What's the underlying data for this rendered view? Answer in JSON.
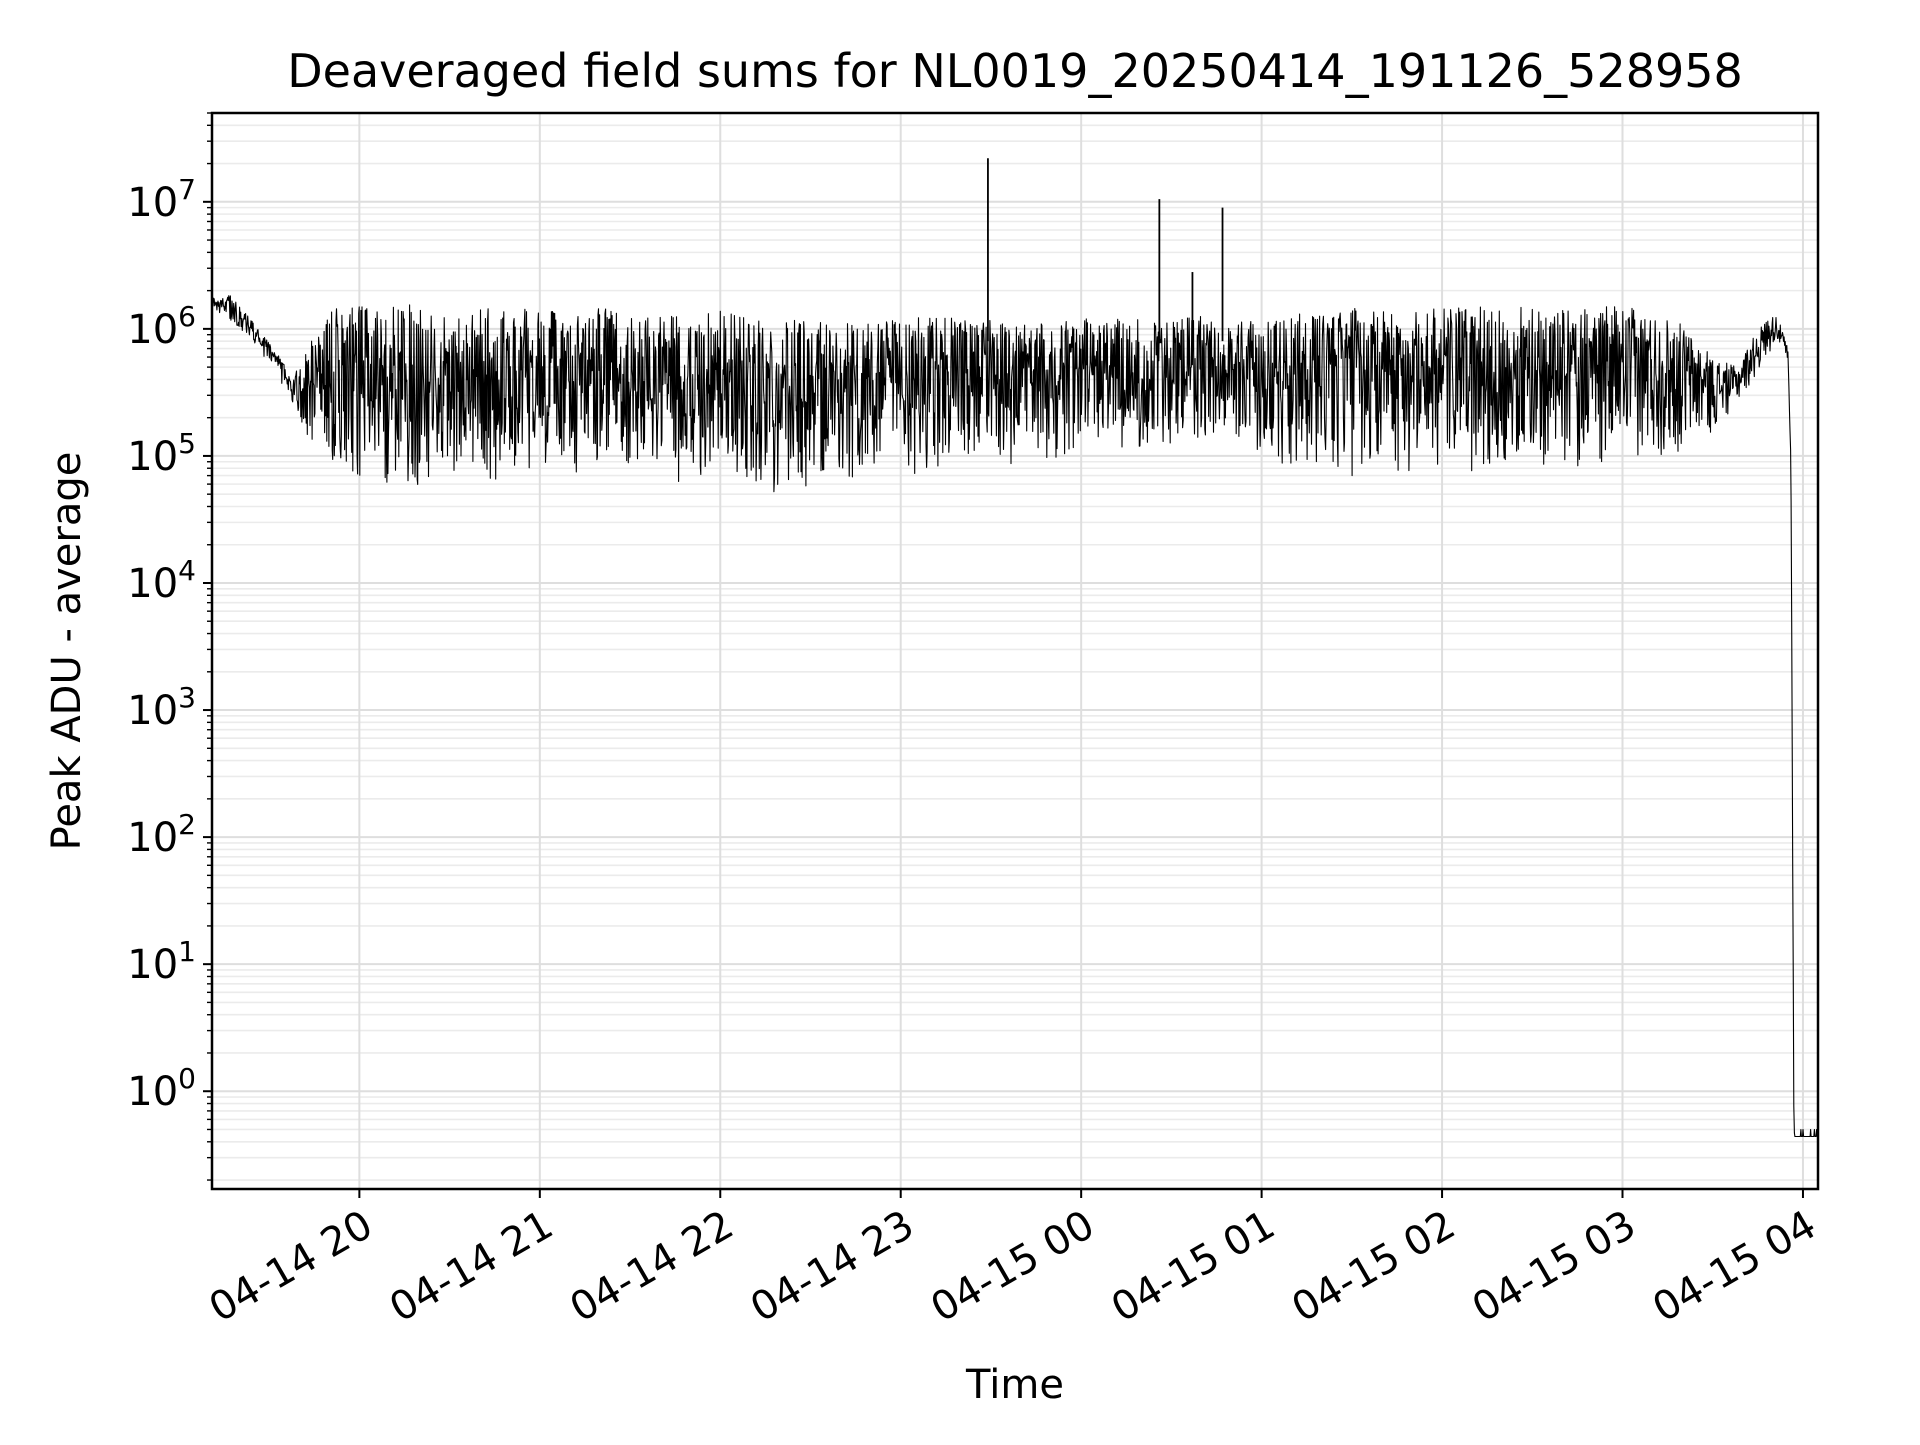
{
  "chart_data": {
    "type": "line",
    "title": "Deaveraged field sums for NL0019_20250414_191126_528958",
    "xlabel": "Time",
    "ylabel": "Peak ADU - average",
    "yscale": "log",
    "ylim": [
      0.17,
      50000000
    ],
    "xlim": [
      "2025-04-14 19:11",
      "2025-04-15 04:05"
    ],
    "grid": true,
    "legend": "none",
    "line_color": "#000000",
    "y_ticks": [
      {
        "base": "10",
        "exp": "0",
        "value": 1
      },
      {
        "base": "10",
        "exp": "1",
        "value": 10
      },
      {
        "base": "10",
        "exp": "2",
        "value": 100
      },
      {
        "base": "10",
        "exp": "3",
        "value": 1000
      },
      {
        "base": "10",
        "exp": "4",
        "value": 10000
      },
      {
        "base": "10",
        "exp": "5",
        "value": 100000
      },
      {
        "base": "10",
        "exp": "6",
        "value": 1000000
      },
      {
        "base": "10",
        "exp": "7",
        "value": 10000000
      }
    ],
    "x_ticks": [
      {
        "label": "04-14 20",
        "time": "2025-04-14 20:00"
      },
      {
        "label": "04-14 21",
        "time": "2025-04-14 21:00"
      },
      {
        "label": "04-14 22",
        "time": "2025-04-14 22:00"
      },
      {
        "label": "04-14 23",
        "time": "2025-04-14 23:00"
      },
      {
        "label": "04-15 00",
        "time": "2025-04-15 00:00"
      },
      {
        "label": "04-15 01",
        "time": "2025-04-15 01:00"
      },
      {
        "label": "04-15 02",
        "time": "2025-04-15 02:00"
      },
      {
        "label": "04-15 03",
        "time": "2025-04-15 03:00"
      },
      {
        "label": "04-15 04",
        "time": "2025-04-15 04:00"
      }
    ],
    "series": [
      {
        "x": [
          "2025-04-14 19:11",
          "2025-04-14 19:14",
          "2025-04-14 19:17",
          "2025-04-14 19:20",
          "2025-04-14 19:24",
          "2025-04-14 19:28",
          "2025-04-14 19:32",
          "2025-04-14 19:36",
          "2025-04-14 19:40",
          "2025-04-14 19:44",
          "2025-04-14 19:48",
          "2025-04-14 19:52",
          "2025-04-14 19:56",
          "2025-04-14 20:00",
          "2025-04-14 20:05",
          "2025-04-14 20:10",
          "2025-04-14 20:15",
          "2025-04-14 20:20",
          "2025-04-14 20:25",
          "2025-04-14 20:30",
          "2025-04-14 20:40",
          "2025-04-14 20:50",
          "2025-04-14 21:00",
          "2025-04-14 21:10",
          "2025-04-14 21:20",
          "2025-04-14 21:30",
          "2025-04-14 21:40",
          "2025-04-14 21:50",
          "2025-04-14 22:00",
          "2025-04-14 22:10",
          "2025-04-14 22:20",
          "2025-04-14 22:30",
          "2025-04-14 22:40",
          "2025-04-14 22:50",
          "2025-04-14 23:00",
          "2025-04-14 23:10",
          "2025-04-14 23:20",
          "2025-04-14 23:30",
          "2025-04-14 23:40",
          "2025-04-14 23:50",
          "2025-04-15 00:00",
          "2025-04-15 00:10",
          "2025-04-15 00:20",
          "2025-04-15 00:30",
          "2025-04-15 00:40",
          "2025-04-15 00:50",
          "2025-04-15 01:00",
          "2025-04-15 01:10",
          "2025-04-15 01:20",
          "2025-04-15 01:30",
          "2025-04-15 01:40",
          "2025-04-15 01:50",
          "2025-04-15 02:00",
          "2025-04-15 02:10",
          "2025-04-15 02:20",
          "2025-04-15 02:30",
          "2025-04-15 02:40",
          "2025-04-15 02:50",
          "2025-04-15 03:00",
          "2025-04-15 03:10",
          "2025-04-15 03:20",
          "2025-04-15 03:30",
          "2025-04-15 03:38",
          "2025-04-15 03:44",
          "2025-04-15 03:48",
          "2025-04-15 03:51",
          "2025-04-15 03:53",
          "2025-04-15 03:55",
          "2025-04-15 03:56",
          "2025-04-15 03:57",
          "2025-04-15 04:00",
          "2025-04-15 04:05"
        ],
        "upper": [
          1800000,
          1700000,
          2000000,
          1500000,
          1200000,
          900000,
          700000,
          500000,
          500000,
          800000,
          1200000,
          1500000,
          1500000,
          1600000,
          1400000,
          1700000,
          1600000,
          1500000,
          1400000,
          1300000,
          1500000,
          1400000,
          1500000,
          1300000,
          1500000,
          1200000,
          1400000,
          1200000,
          1400000,
          1200000,
          1200000,
          1300000,
          1100000,
          1100000,
          1200000,
          1300000,
          1200000,
          1250000,
          1100000,
          1200000,
          1200000,
          1250000,
          1200000,
          1200000,
          1300000,
          1100000,
          1200000,
          1400000,
          1300000,
          1500000,
          1400000,
          1400000,
          1500000,
          1500000,
          1500000,
          1500000,
          1400000,
          1500000,
          1500000,
          1400000,
          1100000,
          600000,
          500000,
          900000,
          1200000,
          1300000,
          1000000,
          700000,
          100000,
          0.5,
          0.5,
          0.5
        ],
        "lower": [
          1500000,
          1300000,
          1100000,
          1000000,
          800000,
          600000,
          450000,
          320000,
          200000,
          120000,
          90000,
          70000,
          60000,
          55000,
          60000,
          55000,
          60000,
          55000,
          50000,
          60000,
          60000,
          70000,
          80000,
          70000,
          80000,
          65000,
          60000,
          55000,
          60000,
          50000,
          50000,
          55000,
          50000,
          55000,
          60000,
          70000,
          80000,
          80000,
          85000,
          90000,
          100000,
          110000,
          100000,
          95000,
          120000,
          150000,
          100000,
          80000,
          70000,
          65000,
          70000,
          75000,
          70000,
          70000,
          75000,
          80000,
          80000,
          85000,
          90000,
          90000,
          100000,
          150000,
          250000,
          400000,
          600000,
          800000,
          700000,
          500000,
          80000,
          0.44,
          0.44,
          0.44
        ]
      }
    ],
    "spikes": [
      {
        "time": "2025-04-14 23:29",
        "value": 22000000
      },
      {
        "time": "2025-04-15 00:26",
        "value": 10500000
      },
      {
        "time": "2025-04-15 00:37",
        "value": 2800000
      },
      {
        "time": "2025-04-15 00:47",
        "value": 9000000
      }
    ]
  }
}
